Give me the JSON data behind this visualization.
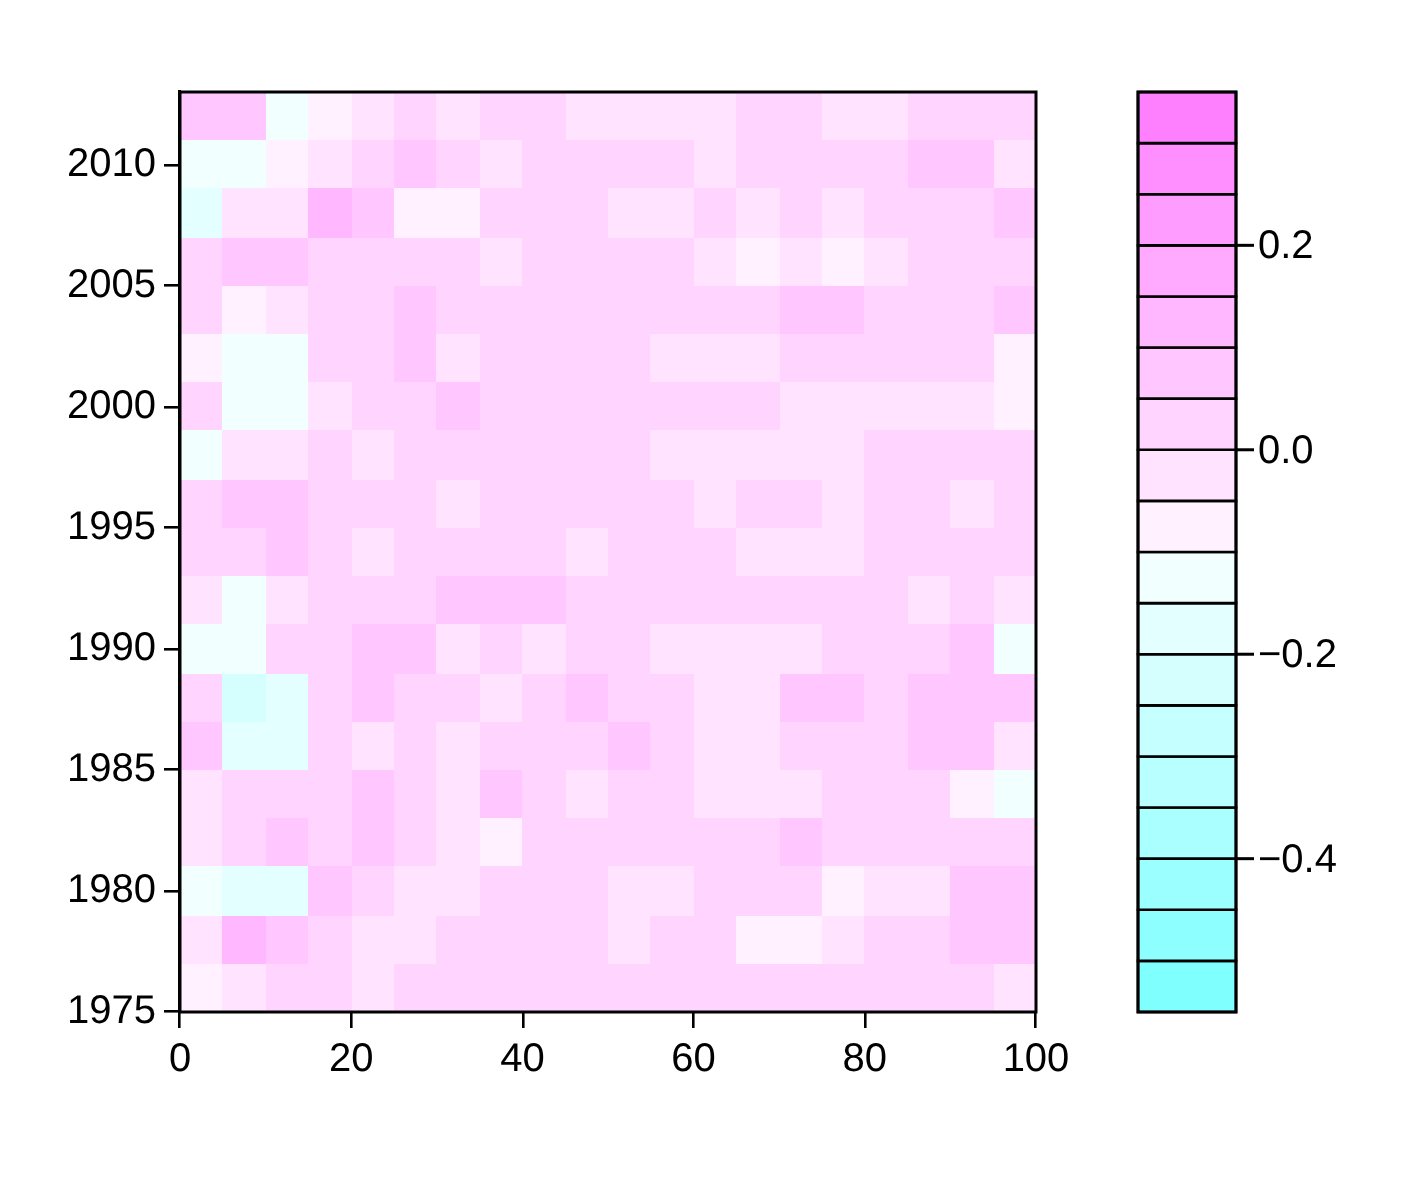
{
  "chart_data": {
    "type": "heatmap",
    "x": [
      2.5,
      7.5,
      12.5,
      17.5,
      22.5,
      27.5,
      32.5,
      37.5,
      42.5,
      47.5,
      52.5,
      57.5,
      62.5,
      67.5,
      72.5,
      77.5,
      82.5,
      87.5,
      92.5,
      97.5
    ],
    "cells": [
      [
        0.08,
        0.08,
        -0.13,
        -0.08,
        -0.03,
        0.03,
        -0.03,
        0.03,
        0.03,
        -0.03,
        -0.03,
        -0.03,
        -0.03,
        0.03,
        0.03,
        -0.03,
        -0.03,
        0.03,
        0.03,
        0.03
      ],
      [
        -0.13,
        -0.13,
        -0.08,
        -0.03,
        0.03,
        0.08,
        0.03,
        -0.03,
        0.03,
        0.03,
        0.03,
        0.03,
        -0.03,
        0.03,
        0.03,
        0.03,
        0.03,
        0.08,
        0.08,
        -0.03
      ],
      [
        -0.18,
        -0.03,
        -0.03,
        0.13,
        0.08,
        -0.08,
        -0.08,
        0.03,
        0.03,
        0.03,
        -0.03,
        -0.03,
        0.03,
        -0.03,
        0.03,
        -0.03,
        0.03,
        0.03,
        0.03,
        0.08
      ],
      [
        0.03,
        0.08,
        0.08,
        0.03,
        0.03,
        0.03,
        0.03,
        -0.03,
        0.03,
        0.03,
        0.03,
        0.03,
        -0.03,
        -0.08,
        -0.03,
        -0.08,
        -0.03,
        0.03,
        0.03,
        0.03
      ],
      [
        0.03,
        -0.08,
        -0.03,
        0.03,
        0.03,
        0.08,
        0.03,
        0.03,
        0.03,
        0.03,
        0.03,
        0.03,
        0.03,
        0.03,
        0.08,
        0.08,
        0.03,
        0.03,
        0.03,
        0.08
      ],
      [
        -0.08,
        -0.13,
        -0.13,
        0.03,
        0.03,
        0.08,
        -0.03,
        0.03,
        0.03,
        0.03,
        0.03,
        -0.03,
        -0.03,
        -0.03,
        0.03,
        0.03,
        0.03,
        0.03,
        0.03,
        -0.08
      ],
      [
        0.03,
        -0.13,
        -0.13,
        -0.03,
        0.03,
        0.03,
        0.08,
        0.03,
        0.03,
        0.03,
        0.03,
        0.03,
        0.03,
        0.03,
        -0.03,
        -0.03,
        -0.03,
        -0.03,
        -0.03,
        -0.08
      ],
      [
        -0.13,
        -0.03,
        -0.03,
        0.03,
        -0.03,
        0.03,
        0.03,
        0.03,
        0.03,
        0.03,
        0.03,
        -0.03,
        -0.03,
        -0.03,
        -0.03,
        -0.03,
        0.03,
        0.03,
        0.03,
        0.03
      ],
      [
        0.03,
        0.08,
        0.08,
        0.03,
        0.03,
        0.03,
        -0.03,
        0.03,
        0.03,
        0.03,
        0.03,
        0.03,
        -0.03,
        0.03,
        0.03,
        -0.03,
        0.03,
        0.03,
        -0.03,
        0.03
      ],
      [
        0.03,
        0.03,
        0.08,
        0.03,
        -0.03,
        0.03,
        0.03,
        0.03,
        0.03,
        -0.03,
        0.03,
        0.03,
        0.03,
        -0.03,
        -0.03,
        -0.03,
        0.03,
        0.03,
        0.03,
        0.03
      ],
      [
        -0.03,
        -0.13,
        -0.03,
        0.03,
        0.03,
        0.03,
        0.08,
        0.08,
        0.08,
        0.03,
        0.03,
        0.03,
        0.03,
        0.03,
        0.03,
        0.03,
        0.03,
        -0.03,
        0.03,
        -0.03
      ],
      [
        -0.13,
        -0.13,
        0.03,
        0.03,
        0.08,
        0.08,
        -0.03,
        0.03,
        -0.03,
        0.03,
        0.03,
        -0.03,
        -0.03,
        -0.03,
        -0.03,
        0.03,
        0.03,
        0.03,
        0.08,
        -0.13
      ],
      [
        0.03,
        -0.23,
        -0.18,
        0.03,
        0.08,
        0.03,
        0.03,
        -0.03,
        0.03,
        0.08,
        0.03,
        0.03,
        -0.03,
        -0.03,
        0.08,
        0.08,
        0.03,
        0.08,
        0.08,
        0.08
      ],
      [
        0.08,
        -0.18,
        -0.18,
        0.03,
        -0.03,
        0.03,
        -0.03,
        0.03,
        0.03,
        0.03,
        0.08,
        0.03,
        -0.03,
        -0.03,
        0.03,
        0.03,
        0.03,
        0.08,
        0.08,
        -0.03
      ],
      [
        -0.03,
        0.03,
        0.03,
        0.03,
        0.08,
        0.03,
        -0.03,
        0.08,
        0.03,
        -0.03,
        0.03,
        0.03,
        -0.03,
        -0.03,
        -0.03,
        0.03,
        0.03,
        0.03,
        -0.08,
        -0.13
      ],
      [
        -0.03,
        0.03,
        0.08,
        0.03,
        0.08,
        0.03,
        -0.03,
        -0.08,
        0.03,
        0.03,
        0.03,
        0.03,
        0.03,
        0.03,
        0.08,
        0.03,
        0.03,
        0.03,
        0.03,
        0.03
      ],
      [
        -0.13,
        -0.18,
        -0.18,
        0.08,
        0.03,
        -0.03,
        -0.03,
        0.03,
        0.03,
        0.03,
        -0.03,
        -0.03,
        0.03,
        0.03,
        0.03,
        -0.08,
        -0.03,
        -0.03,
        0.08,
        0.08
      ],
      [
        -0.03,
        0.13,
        0.08,
        0.03,
        -0.03,
        -0.03,
        0.03,
        0.03,
        0.03,
        0.03,
        -0.03,
        0.03,
        0.03,
        -0.08,
        -0.08,
        -0.03,
        0.03,
        0.03,
        0.08,
        0.08
      ],
      [
        -0.08,
        -0.03,
        0.03,
        0.03,
        -0.03,
        0.03,
        0.03,
        0.03,
        0.03,
        0.03,
        0.03,
        0.03,
        0.03,
        0.03,
        0.03,
        0.03,
        0.03,
        0.03,
        0.03,
        -0.03
      ]
    ],
    "xlim": [
      0,
      100
    ],
    "xticks": [
      0,
      20,
      40,
      60,
      80,
      100
    ],
    "ylim": [
      1975,
      2013
    ],
    "yticks": [
      1975,
      1980,
      1985,
      1990,
      1995,
      2000,
      2005,
      2010
    ],
    "clim": [
      -0.55,
      0.35
    ],
    "cticks": [
      {
        "value": -0.4,
        "label": "−0.4"
      },
      {
        "value": -0.2,
        "label": "−0.2"
      },
      {
        "value": 0,
        "label": "0.0"
      },
      0.2
    ],
    "colors": [
      "#80ffff",
      "#8effff",
      "#9cffff",
      "#aaffff",
      "#b8ffff",
      "#c6ffff",
      "#d5ffff",
      "#e3ffff",
      "#f1ffff",
      "#fff1ff",
      "#ffe3ff",
      "#ffd5ff",
      "#ffc6ff",
      "#ffb8ff",
      "#ffaaff",
      "#ff9cff",
      "#ff8eff",
      "#ff80ff"
    ]
  }
}
